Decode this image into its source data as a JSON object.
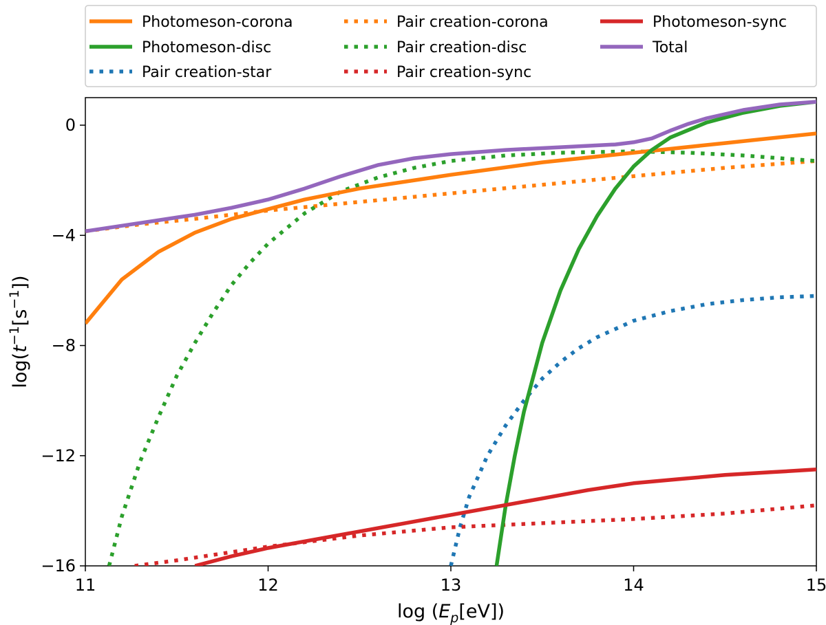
{
  "chart_data": {
    "type": "line",
    "title": "",
    "xlabel": "log (E_p[eV])",
    "ylabel": "log(t^-1[s^-1])",
    "xlim": [
      11,
      15
    ],
    "ylim": [
      -16,
      1
    ],
    "xticks": [
      11,
      12,
      13,
      14,
      15
    ],
    "yticks": [
      0,
      -4,
      -8,
      -12,
      -16
    ],
    "xtick_labels": [
      "11",
      "12",
      "13",
      "14",
      "15"
    ],
    "ytick_labels": [
      "0",
      "−4",
      "−8",
      "−12",
      "−16"
    ],
    "grid": false,
    "legend_placement": "top, above plot, 3 columns",
    "series": [
      {
        "name": "Photomeson-corona",
        "color": "#ff7f0e",
        "style": "solid",
        "x": [
          11.0,
          11.2,
          11.4,
          11.6,
          11.8,
          12.0,
          12.2,
          12.5,
          13.0,
          13.5,
          14.0,
          14.5,
          15.0
        ],
        "y": [
          -7.2,
          -5.6,
          -4.6,
          -3.9,
          -3.4,
          -3.05,
          -2.7,
          -2.3,
          -1.8,
          -1.35,
          -1.0,
          -0.65,
          -0.3
        ]
      },
      {
        "name": "Photomeson-disc",
        "color": "#2ca02c",
        "style": "solid",
        "x": [
          13.25,
          13.3,
          13.35,
          13.4,
          13.5,
          13.6,
          13.7,
          13.8,
          13.9,
          14.0,
          14.1,
          14.2,
          14.4,
          14.6,
          14.8,
          15.0
        ],
        "y": [
          -16.0,
          -13.8,
          -12.0,
          -10.4,
          -7.9,
          -6.0,
          -4.5,
          -3.3,
          -2.3,
          -1.5,
          -0.9,
          -0.45,
          0.1,
          0.45,
          0.7,
          0.85
        ]
      },
      {
        "name": "Pair creation-star",
        "color": "#1f77b4",
        "style": "dotted",
        "x": [
          13.0,
          13.05,
          13.1,
          13.2,
          13.3,
          13.4,
          13.5,
          13.6,
          13.7,
          13.8,
          14.0,
          14.2,
          14.4,
          14.6,
          14.8,
          15.0
        ],
        "y": [
          -16.0,
          -14.6,
          -13.5,
          -12.0,
          -10.9,
          -10.0,
          -9.2,
          -8.6,
          -8.1,
          -7.7,
          -7.1,
          -6.75,
          -6.5,
          -6.35,
          -6.25,
          -6.2
        ]
      },
      {
        "name": "Pair creation-corona",
        "color": "#ff7f0e",
        "style": "dotted",
        "x": [
          11.0,
          11.3,
          11.6,
          12.0,
          12.4,
          12.8,
          13.2,
          13.6,
          14.0,
          14.5,
          15.0
        ],
        "y": [
          -3.85,
          -3.6,
          -3.4,
          -3.1,
          -2.85,
          -2.6,
          -2.35,
          -2.1,
          -1.85,
          -1.55,
          -1.3
        ]
      },
      {
        "name": "Pair creation-disc",
        "color": "#2ca02c",
        "style": "dotted",
        "x": [
          11.13,
          11.2,
          11.3,
          11.4,
          11.5,
          11.6,
          11.7,
          11.8,
          11.9,
          12.0,
          12.2,
          12.4,
          12.6,
          12.8,
          13.0,
          13.3,
          13.6,
          14.0,
          14.3,
          14.6,
          15.0
        ],
        "y": [
          -16.0,
          -14.2,
          -12.2,
          -10.6,
          -9.1,
          -7.9,
          -6.8,
          -5.8,
          -5.0,
          -4.3,
          -3.2,
          -2.4,
          -1.9,
          -1.55,
          -1.3,
          -1.1,
          -1.0,
          -0.95,
          -1.0,
          -1.1,
          -1.3
        ]
      },
      {
        "name": "Pair creation-sync",
        "color": "#d62728",
        "style": "dotted",
        "x": [
          11.27,
          11.5,
          11.75,
          12.0,
          12.25,
          12.5,
          12.75,
          13.0,
          13.5,
          14.0,
          14.5,
          15.0
        ],
        "y": [
          -16.0,
          -15.8,
          -15.55,
          -15.3,
          -15.1,
          -14.9,
          -14.75,
          -14.6,
          -14.45,
          -14.3,
          -14.1,
          -13.8
        ]
      },
      {
        "name": "Photomeson-sync",
        "color": "#d62728",
        "style": "solid",
        "x": [
          11.6,
          11.8,
          12.0,
          12.25,
          12.5,
          12.75,
          13.0,
          13.25,
          13.5,
          13.75,
          14.0,
          14.25,
          14.5,
          14.75,
          15.0
        ],
        "y": [
          -16.0,
          -15.65,
          -15.35,
          -15.05,
          -14.75,
          -14.45,
          -14.15,
          -13.85,
          -13.55,
          -13.25,
          -13.0,
          -12.85,
          -12.7,
          -12.6,
          -12.5
        ]
      },
      {
        "name": "Total",
        "color": "#9467bd",
        "style": "solid",
        "x": [
          11.0,
          11.3,
          11.6,
          11.8,
          12.0,
          12.2,
          12.4,
          12.6,
          12.8,
          13.0,
          13.3,
          13.6,
          13.9,
          14.0,
          14.1,
          14.2,
          14.3,
          14.4,
          14.6,
          14.8,
          15.0
        ],
        "y": [
          -3.85,
          -3.55,
          -3.25,
          -3.0,
          -2.7,
          -2.3,
          -1.85,
          -1.45,
          -1.2,
          -1.05,
          -0.9,
          -0.8,
          -0.7,
          -0.62,
          -0.48,
          -0.2,
          0.05,
          0.25,
          0.55,
          0.75,
          0.85
        ]
      }
    ],
    "legend": [
      [
        "Photomeson-corona",
        "Pair creation-corona",
        "Photomeson-sync"
      ],
      [
        "Photomeson-disc",
        "Pair creation-disc",
        "Total"
      ],
      [
        "Pair creation-star",
        "Pair creation-sync"
      ]
    ]
  }
}
